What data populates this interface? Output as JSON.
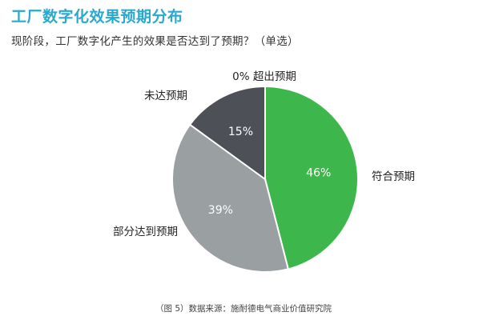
{
  "title": "工厂数字化效果预期分布",
  "subtitle": "现阶段，工厂数字化产生的效果是否达到了预期？（单选）",
  "source": "（图 5）数据来源：施耐德电气商业价值研究院",
  "chart_data": {
    "type": "pie",
    "start_angle_deg": 0,
    "direction": "clockwise",
    "slices": [
      {
        "label": "0% 超出预期",
        "value": 0,
        "value_label": "0%",
        "color": "#3db74c"
      },
      {
        "label": "符合预期",
        "value": 46,
        "value_label": "46%",
        "color": "#3db74c"
      },
      {
        "label": "部分达到预期",
        "value": 39,
        "value_label": "39%",
        "color": "#9a9fa2"
      },
      {
        "label": "未达预期",
        "value": 15,
        "value_label": "15%",
        "color": "#4d5157"
      }
    ]
  }
}
